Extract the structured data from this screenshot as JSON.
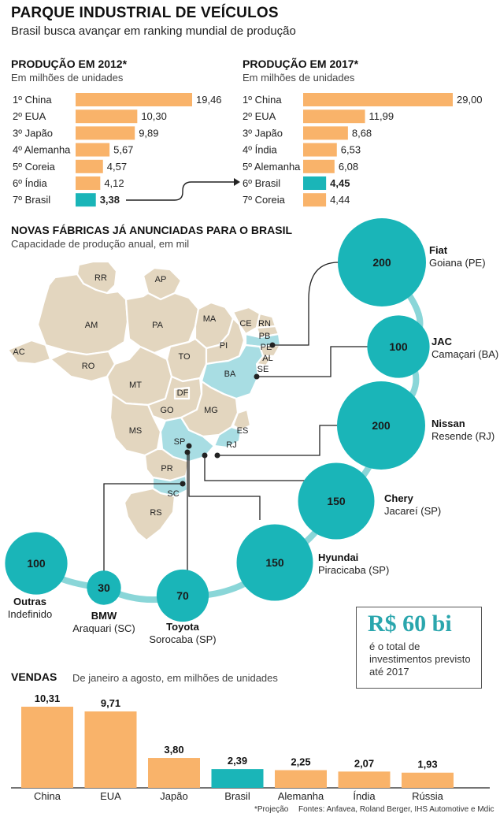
{
  "header": {
    "title": "PARQUE INDUSTRIAL DE VEÍCULOS",
    "subtitle": "Brasil busca avançar em ranking mundial de produção"
  },
  "colors": {
    "orange": "#f9b36a",
    "teal": "#1ab5b8",
    "teal_light": "#8ad6d8",
    "map_land": "#e3d6bf",
    "map_highlight": "#a8dde3"
  },
  "chart_data": [
    {
      "type": "bar",
      "orientation": "horizontal",
      "title": "PRODUÇÃO EM 2012*",
      "unit_label": "Em milhões de unidades",
      "categories": [
        "1º China",
        "2º EUA",
        "3º Japão",
        "4º Alemanha",
        "5º Coreia",
        "6º Índia",
        "7º Brasil"
      ],
      "values": [
        19.46,
        10.3,
        9.89,
        5.67,
        4.57,
        4.12,
        3.38
      ],
      "value_labels": [
        "19,46",
        "10,30",
        "9,89",
        "5,67",
        "4,57",
        "4,12",
        "3,38"
      ],
      "highlight": "7º Brasil"
    },
    {
      "type": "bar",
      "orientation": "horizontal",
      "title": "PRODUÇÃO EM 2017*",
      "unit_label": "Em milhões de unidades",
      "categories": [
        "1º China",
        "2º EUA",
        "3º Japão",
        "4º Índia",
        "5º Alemanha",
        "6º Brasil",
        "7º Coreia"
      ],
      "values": [
        29.0,
        11.99,
        8.68,
        6.53,
        6.08,
        4.45,
        4.44
      ],
      "value_labels": [
        "29,00",
        "11,99",
        "8,68",
        "6,53",
        "6,08",
        "4,45",
        "4,44"
      ],
      "highlight": "6º Brasil"
    },
    {
      "type": "bubble",
      "title": "NOVAS FÁBRICAS JÁ ANUNCIADAS PARA O BRASIL",
      "unit_label": "Capacidade de produção anual, em mil",
      "items": [
        {
          "brand": "Fiat",
          "place": "Goiana (PE)",
          "value": 200,
          "label": "200"
        },
        {
          "brand": "JAC",
          "place": "Camaçari (BA)",
          "value": 100,
          "label": "100"
        },
        {
          "brand": "Nissan",
          "place": "Resende (RJ)",
          "value": 200,
          "label": "200"
        },
        {
          "brand": "Chery",
          "place": "Jacareí (SP)",
          "value": 150,
          "label": "150"
        },
        {
          "brand": "Hyundai",
          "place": "Piracicaba (SP)",
          "value": 150,
          "label": "150"
        },
        {
          "brand": "Toyota",
          "place": "Sorocaba (SP)",
          "value": 70,
          "label": "70"
        },
        {
          "brand": "BMW",
          "place": "Araquari (SC)",
          "value": 30,
          "label": "30"
        },
        {
          "brand": "Outras",
          "place": "Indefinido",
          "value": 100,
          "label": "100"
        }
      ]
    },
    {
      "type": "bar",
      "orientation": "vertical",
      "title": "VENDAS",
      "unit_label": "De janeiro a agosto, em milhões de unidades",
      "categories": [
        "China",
        "EUA",
        "Japão",
        "Brasil",
        "Alemanha",
        "Índia",
        "Rússia"
      ],
      "values": [
        10.31,
        9.71,
        3.8,
        2.39,
        2.25,
        2.07,
        1.93
      ],
      "value_labels": [
        "10,31",
        "9,71",
        "3,80",
        "2,39",
        "2,25",
        "2,07",
        "1,93"
      ],
      "highlight": "Brasil"
    }
  ],
  "map": {
    "states": [
      "RR",
      "AP",
      "AM",
      "PA",
      "MA",
      "CE",
      "RN",
      "PB",
      "PE",
      "AL",
      "SE",
      "PI",
      "BA",
      "TO",
      "AC",
      "RO",
      "MT",
      "GO",
      "DF",
      "MG",
      "ES",
      "RJ",
      "SP",
      "MS",
      "PR",
      "SC",
      "RS"
    ],
    "highlighted": [
      "PE",
      "BA",
      "SP",
      "RJ",
      "SC"
    ]
  },
  "investment": {
    "amount": "R$ 60 bi",
    "text": "é o total de investimentos previsto até 2017"
  },
  "footer": {
    "note": "*Projeção",
    "sources": "Fontes: Anfavea, Roland Berger, IHS Automotive e Mdic"
  }
}
